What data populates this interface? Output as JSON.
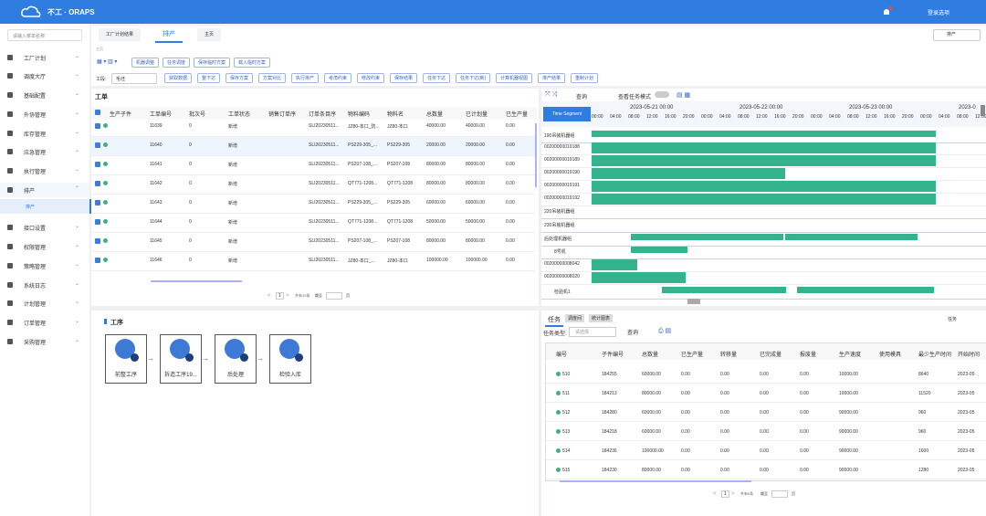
{
  "header": {
    "logo": "不工 · ORAPS",
    "user": "登录选项"
  },
  "sidebar": {
    "search_placeholder": "请输入菜单名称",
    "items": [
      "工厂计划",
      "调度大厅",
      "基础配置",
      "外协管理",
      "库存管理",
      "应急管理",
      "执行管理",
      "排产",
      "接口设置",
      "权限管理",
      "策略管理",
      "系统日志",
      "计划管理",
      "订单管理",
      "采购管理"
    ],
    "sub_item": "排产"
  },
  "tabs": [
    "工厂计划结果",
    "排产",
    "主页"
  ],
  "top_select": "排产",
  "toolbar": {
    "caption": "主页",
    "row1": [
      "机器调整",
      "任务调度",
      "保存临时方案",
      "载入临时方案"
    ],
    "section_label": "工段:",
    "section_value": "毛坯",
    "row2": [
      "获取数据",
      "整下达",
      "保存方案",
      "方案对比",
      "执行排产",
      "考虑约束",
      "修改约束",
      "保存结果",
      "任务下达",
      "任务下达(新)",
      "计算机器视图",
      "排产结果",
      "重制计划"
    ]
  },
  "work_orders": {
    "title": "工单",
    "columns": [
      "生产子件",
      "工单编号",
      "批次号",
      "工单状态",
      "销售订单序",
      "订单条目序",
      "物料编码",
      "物料名",
      "总数量",
      "已计划量",
      "已生产量"
    ],
    "rows": [
      [
        "11639",
        "0",
        "新增",
        "SLI20230511...",
        "JZ80-本口_防...",
        "JZ80-本口",
        "40000.00",
        "40000.00",
        "0.00"
      ],
      [
        "11640",
        "0",
        "新增",
        "SLI20230511...",
        "PS229-305_...",
        "PS229-305",
        "20000.00",
        "20000.00",
        "0.00"
      ],
      [
        "11641",
        "0",
        "新增",
        "SLI20230511...",
        "PS207-108_...",
        "PS207-108",
        "80000.00",
        "80000.00",
        "0.00"
      ],
      [
        "11642",
        "0",
        "新增",
        "SLI20230511...",
        "QT771-1208...",
        "QT771-1208",
        "80000.00",
        "80000.00",
        "0.00"
      ],
      [
        "11643",
        "0",
        "新增",
        "SLI20230511...",
        "PS229-305_...",
        "PS229-305",
        "60000.00",
        "60000.00",
        "0.00"
      ],
      [
        "11644",
        "0",
        "新增",
        "SLI20230511...",
        "QT771-1208...",
        "QT771-1208",
        "50000.00",
        "50000.00",
        "0.00"
      ],
      [
        "11645",
        "0",
        "新增",
        "SLI20230511...",
        "PS207-108_...",
        "PS207-108",
        "80000.00",
        "80000.00",
        "0.00"
      ],
      [
        "11646",
        "0",
        "新增",
        "SLI20230511...",
        "JZ80-本口_...",
        "JZ80-本口",
        "100000.00",
        "100000.00",
        "0.00"
      ]
    ],
    "pagination": {
      "page": "1",
      "total": "共有10条",
      "jump": "跳至",
      "unit": "页"
    }
  },
  "gantt": {
    "query": "查询",
    "mode": "查看任务模式",
    "time_segment": "Time Segment",
    "dates": [
      "2023-05-21 00:00",
      "2023-05-22 00:00",
      "2023-05-23 00:00",
      "2023-0"
    ],
    "hours": [
      "00:00",
      "04:00",
      "08:00",
      "12:00",
      "16:00",
      "20:00"
    ],
    "rows": [
      "190吊装机器组",
      "00200000019188",
      "00200000019189",
      "00200000019190",
      "00200000019191",
      "00200000019192",
      "220吊装机器组",
      "230吊装机器组",
      "后处理机器组",
      "8号机",
      "00200000008042",
      "00200000008020",
      "检验机1"
    ]
  },
  "process": {
    "title": "工序",
    "steps": [
      "前整工序",
      "拆造工序19...",
      "后处理",
      "检验入库"
    ]
  },
  "tasks": {
    "tabs": [
      "任务",
      "调度间",
      "统计图表"
    ],
    "right_label": "任务",
    "filter_label": "任务类型:",
    "filter_placeholder": "请选择",
    "query": "查询",
    "columns": [
      "编号",
      "子件编号",
      "总数量",
      "已生产量",
      "转移量",
      "已完成量",
      "报废量",
      "生产速度",
      "使用模具",
      "最少生产时间",
      "开始时间"
    ],
    "rows": [
      [
        "510",
        "184255",
        "60000.00",
        "0.00",
        "0.00",
        "0.00",
        "0.00",
        "10000.00",
        "8640",
        "2023-05"
      ],
      [
        "511",
        "184213",
        "80000.00",
        "0.00",
        "0.00",
        "0.00",
        "0.00",
        "10000.00",
        "11520",
        "2023-05"
      ],
      [
        "512",
        "184280",
        "60000.00",
        "0.00",
        "0.00",
        "0.00",
        "0.00",
        "90000.00",
        "960",
        "2023-05"
      ],
      [
        "513",
        "184218",
        "60000.00",
        "0.00",
        "0.00",
        "0.00",
        "0.00",
        "90000.00",
        "960",
        "2023-05"
      ],
      [
        "514",
        "184236",
        "100000.00",
        "0.00",
        "0.00",
        "0.00",
        "0.00",
        "90000.00",
        "1600",
        "2023-05"
      ],
      [
        "515",
        "184230",
        "80000.00",
        "0.00",
        "0.00",
        "0.00",
        "0.00",
        "90000.00",
        "1280",
        "2023-05"
      ]
    ],
    "pagination": {
      "page": "1",
      "total": "共有6条",
      "jump": "跳至",
      "unit": "页"
    }
  }
}
